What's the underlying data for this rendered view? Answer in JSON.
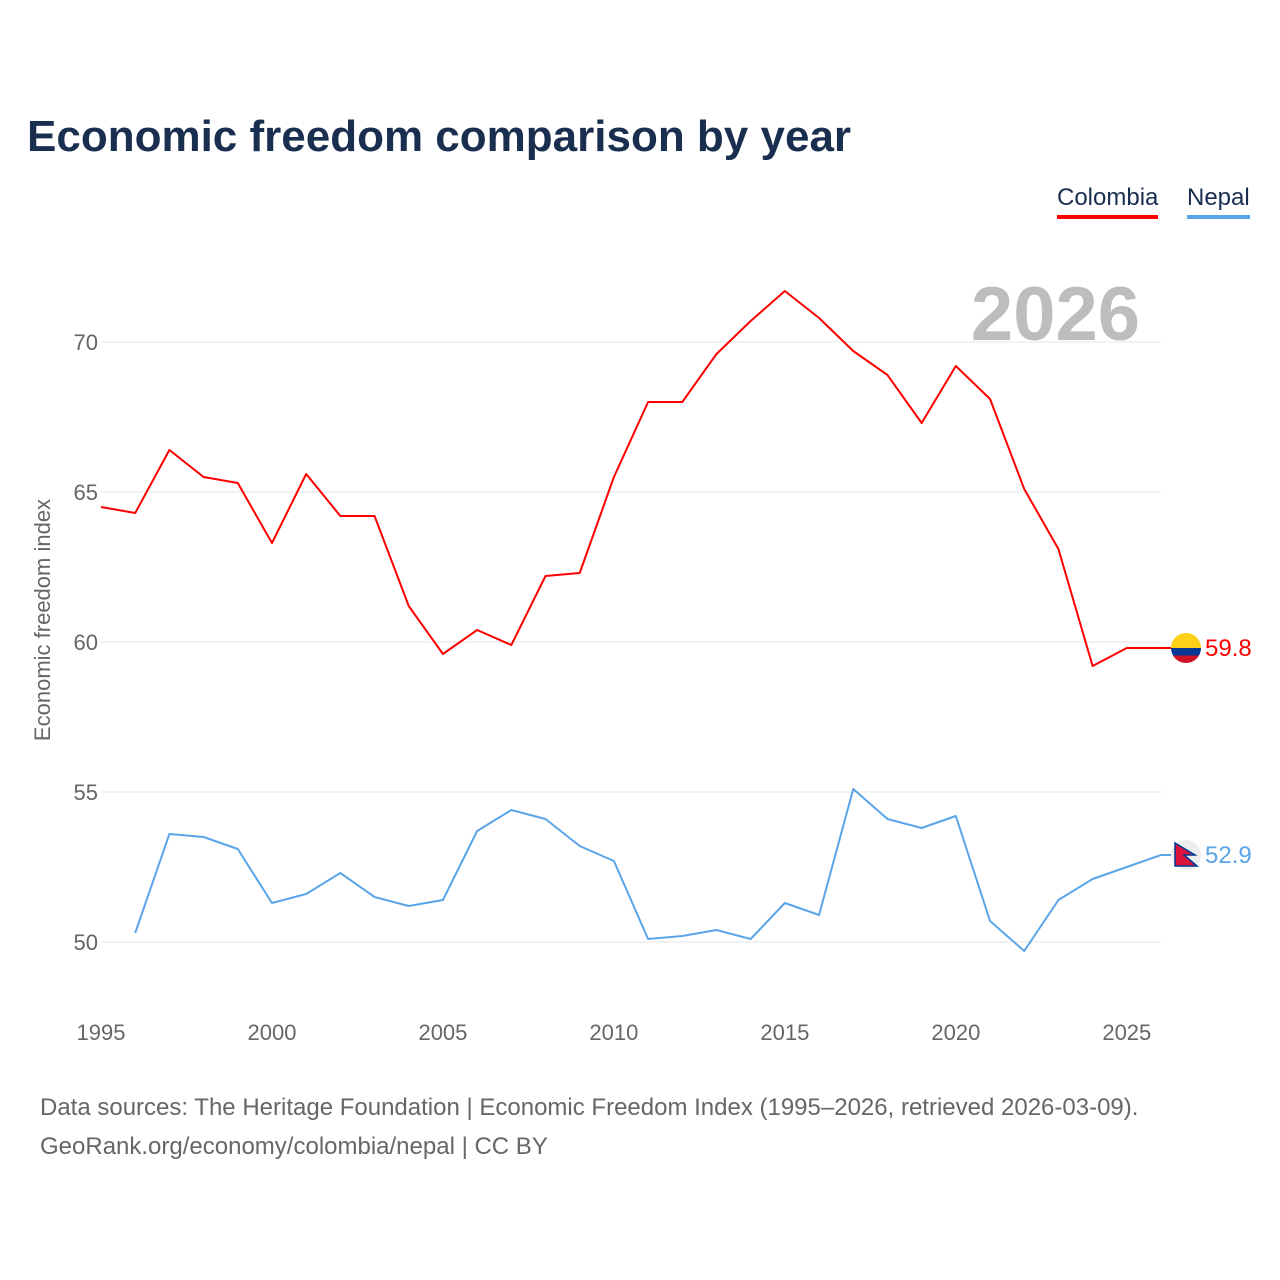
{
  "chart_data": {
    "type": "line",
    "title": "Economic freedom comparison by year",
    "xlabel": "",
    "ylabel": "Economic freedom index",
    "xlim": [
      1995,
      2026
    ],
    "ylim": [
      47.8,
      73.2
    ],
    "yticks": [
      50,
      55,
      60,
      65,
      70
    ],
    "xticks": [
      1995,
      2000,
      2005,
      2010,
      2015,
      2020,
      2025
    ],
    "grid": true,
    "legend_position": "top-right",
    "year_label": "2026",
    "series": [
      {
        "name": "Colombia",
        "color": "#ff0000",
        "end_label": "59.8",
        "x": [
          1995,
          1996,
          1997,
          1998,
          1999,
          2000,
          2001,
          2002,
          2003,
          2004,
          2005,
          2006,
          2007,
          2008,
          2009,
          2010,
          2011,
          2012,
          2013,
          2014,
          2015,
          2016,
          2017,
          2018,
          2019,
          2020,
          2021,
          2022,
          2023,
          2024,
          2025,
          2026
        ],
        "values": [
          64.5,
          64.3,
          66.4,
          65.5,
          65.3,
          63.3,
          65.6,
          64.2,
          64.2,
          61.2,
          59.6,
          60.4,
          59.9,
          62.2,
          62.3,
          65.5,
          68.0,
          68.0,
          69.6,
          70.7,
          71.7,
          70.8,
          69.7,
          68.9,
          67.3,
          69.2,
          68.1,
          65.1,
          63.1,
          59.2,
          59.8,
          59.8
        ]
      },
      {
        "name": "Nepal",
        "color": "#5aa5e8",
        "end_label": "52.9",
        "x": [
          1996,
          1997,
          1998,
          1999,
          2000,
          2001,
          2002,
          2003,
          2004,
          2005,
          2006,
          2007,
          2008,
          2009,
          2010,
          2011,
          2012,
          2013,
          2014,
          2015,
          2016,
          2017,
          2018,
          2019,
          2020,
          2021,
          2022,
          2023,
          2024,
          2025,
          2026
        ],
        "values": [
          50.3,
          53.6,
          53.5,
          53.1,
          51.3,
          51.6,
          52.3,
          51.5,
          51.2,
          51.4,
          53.7,
          54.4,
          54.1,
          53.2,
          52.7,
          50.1,
          50.2,
          50.4,
          50.1,
          51.3,
          50.9,
          55.1,
          54.1,
          53.8,
          54.2,
          50.7,
          49.7,
          51.4,
          52.1,
          52.5,
          52.9
        ]
      }
    ]
  },
  "source": {
    "line1": "Data sources: The Heritage Foundation | Economic Freedom Index (1995–2026, retrieved 2026-03-09).",
    "line2": "GeoRank.org/economy/colombia/nepal | CC BY"
  }
}
